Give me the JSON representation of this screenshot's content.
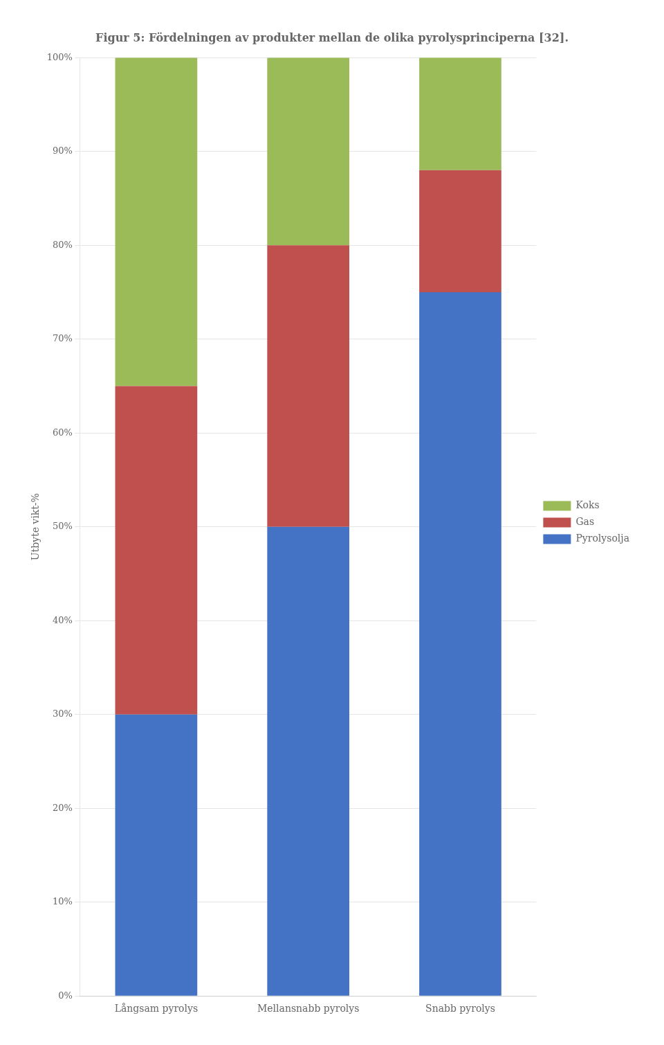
{
  "chart_data": {
    "type": "bar",
    "title": "Figur 5: Fördelningen av produkter mellan de olika pyrolysprinciperna [32].",
    "ylabel": "Utbyte vikt-%",
    "categories": [
      "Långsam pyrolys",
      "Mellansnabb pyrolys",
      "Snabb pyrolys"
    ],
    "series": [
      {
        "name": "Pyrolysolja",
        "color": "#4472C4",
        "values": [
          30,
          50,
          75
        ]
      },
      {
        "name": "Gas",
        "color": "#C0504D",
        "values": [
          35,
          30,
          13
        ]
      },
      {
        "name": "Koks",
        "color": "#9BBB59",
        "values": [
          35,
          20,
          12
        ]
      }
    ],
    "stacked": true,
    "ylim": [
      0,
      100
    ],
    "yticks": [
      {
        "value": 0,
        "label": "0%"
      },
      {
        "value": 10,
        "label": "10%"
      },
      {
        "value": 20,
        "label": "20%"
      },
      {
        "value": 30,
        "label": "30%"
      },
      {
        "value": 40,
        "label": "40%"
      },
      {
        "value": 50,
        "label": "50%"
      },
      {
        "value": 60,
        "label": "60%"
      },
      {
        "value": 70,
        "label": "70%"
      },
      {
        "value": 80,
        "label": "80%"
      },
      {
        "value": 90,
        "label": "90%"
      },
      {
        "value": 100,
        "label": "100%"
      }
    ],
    "grid": true,
    "legend": "right"
  }
}
